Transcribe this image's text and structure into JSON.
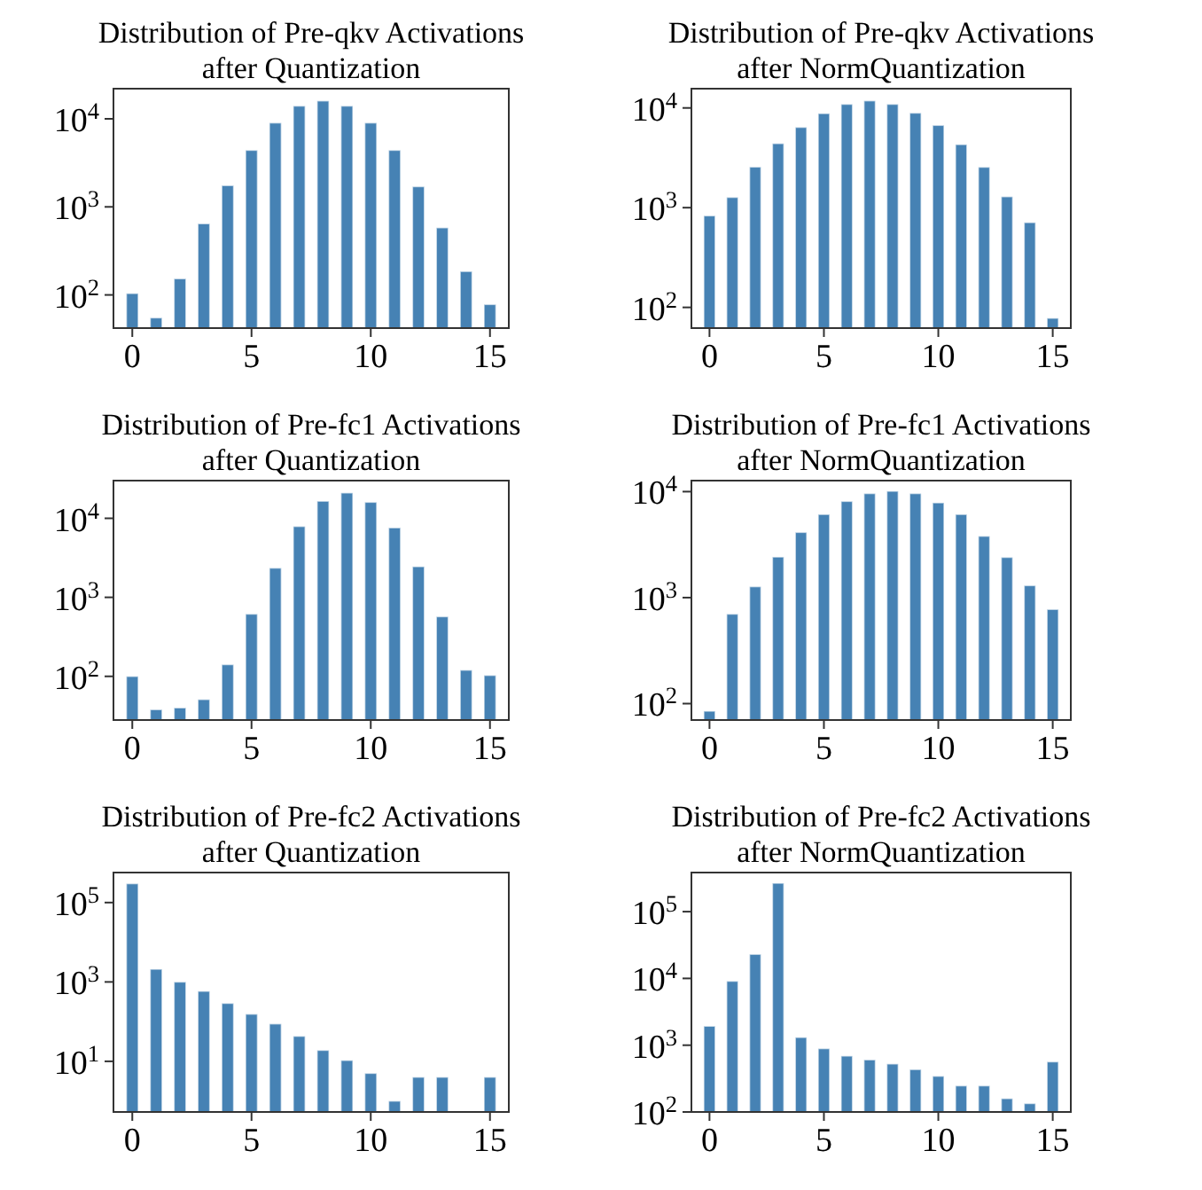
{
  "chart_data": [
    {
      "type": "bar",
      "title": "Distribution of Pre-qkv Activations after Quantization",
      "x": [
        0,
        1,
        2,
        3,
        4,
        5,
        6,
        7,
        8,
        9,
        10,
        11,
        12,
        13,
        14,
        15
      ],
      "log": "y",
      "xlim": [
        -0.79,
        15.79
      ],
      "xticks": [
        0,
        5,
        10,
        15
      ],
      "ylim": [
        42,
        22000
      ],
      "yticks": [
        {
          "value": 100,
          "label": "10$^{2}$"
        },
        {
          "value": 1000,
          "label": "10$^{3}$"
        },
        {
          "value": 10000,
          "label": "10$^{4}$"
        }
      ],
      "series": [
        {
          "color": "#4682b4",
          "values": [
            104,
            55,
            153,
            645,
            1750,
            4400,
            9000,
            14000,
            16000,
            14000,
            9000,
            4400,
            1700,
            580,
            185,
            78
          ]
        }
      ]
    },
    {
      "type": "bar",
      "title": "Distribution of Pre-qkv Activations after NormQuantization",
      "x": [
        0,
        1,
        2,
        3,
        4,
        5,
        6,
        7,
        8,
        9,
        10,
        11,
        12,
        13,
        14,
        15
      ],
      "log": "y",
      "xlim": [
        -0.79,
        15.79
      ],
      "xticks": [
        0,
        5,
        10,
        15
      ],
      "ylim": [
        62,
        15600
      ],
      "yticks": [
        {
          "value": 100,
          "label": "10$^{2}$"
        },
        {
          "value": 1000,
          "label": "10$^{3}$"
        },
        {
          "value": 10000,
          "label": "10$^{4}$"
        }
      ],
      "series": [
        {
          "color": "#4682b4",
          "values": [
            830,
            1270,
            2560,
            4400,
            6400,
            8800,
            10900,
            11800,
            10900,
            8900,
            6700,
            4300,
            2550,
            1290,
            710,
            78
          ]
        }
      ]
    },
    {
      "type": "bar",
      "title": "Distribution of Pre-fc1 Activations after Quantization",
      "x": [
        0,
        1,
        2,
        3,
        4,
        5,
        6,
        7,
        8,
        9,
        10,
        11,
        12,
        13,
        14,
        15
      ],
      "log": "y",
      "xlim": [
        -0.79,
        15.79
      ],
      "xticks": [
        0,
        5,
        10,
        15
      ],
      "ylim": [
        28,
        30000
      ],
      "yticks": [
        {
          "value": 100,
          "label": "10$^{2}$"
        },
        {
          "value": 1000,
          "label": "10$^{3}$"
        },
        {
          "value": 10000,
          "label": "10$^{4}$"
        }
      ],
      "series": [
        {
          "color": "#4682b4",
          "values": [
            100,
            38,
            40,
            51,
            141,
            615,
            2350,
            7900,
            16500,
            21000,
            16000,
            7600,
            2450,
            570,
            120,
            103
          ]
        }
      ]
    },
    {
      "type": "bar",
      "title": "Distribution of Pre-fc1 Activations after NormQuantization",
      "x": [
        0,
        1,
        2,
        3,
        4,
        5,
        6,
        7,
        8,
        9,
        10,
        11,
        12,
        13,
        14,
        15
      ],
      "log": "y",
      "xlim": [
        -0.79,
        15.79
      ],
      "xticks": [
        0,
        5,
        10,
        15
      ],
      "ylim": [
        70,
        12700
      ],
      "yticks": [
        {
          "value": 100,
          "label": "10$^{2}$"
        },
        {
          "value": 1000,
          "label": "10$^{3}$"
        },
        {
          "value": 10000,
          "label": "10$^{4}$"
        }
      ],
      "series": [
        {
          "color": "#4682b4",
          "values": [
            85,
            700,
            1270,
            2420,
            4130,
            6100,
            8100,
            9600,
            10100,
            9600,
            7850,
            6100,
            3800,
            2400,
            1300,
            775
          ]
        }
      ]
    },
    {
      "type": "bar",
      "title": "Distribution of Pre-fc2 Activations after Quantization",
      "x": [
        0,
        1,
        2,
        3,
        4,
        5,
        6,
        7,
        8,
        9,
        10,
        11,
        12,
        13,
        14,
        15
      ],
      "log": "y",
      "xlim": [
        -0.79,
        15.79
      ],
      "xticks": [
        0,
        5,
        10,
        15
      ],
      "ylim": [
        0.53,
        570000
      ],
      "yticks": [
        {
          "value": 10,
          "label": "10$^{1}$"
        },
        {
          "value": 1000,
          "label": "10$^{3}$"
        },
        {
          "value": 100000,
          "label": "10$^{5}$"
        }
      ],
      "series": [
        {
          "color": "#4682b4",
          "values": [
            300000,
            2100,
            1000,
            585,
            290,
            155,
            88,
            43,
            19,
            10.6,
            5,
            1,
            4,
            4,
            null,
            4
          ]
        }
      ]
    },
    {
      "type": "bar",
      "title": "Distribution of Pre-fc2 Activations after NormQuantization",
      "x": [
        0,
        1,
        2,
        3,
        4,
        5,
        6,
        7,
        8,
        9,
        10,
        11,
        12,
        13,
        14,
        15
      ],
      "log": "y",
      "xlim": [
        -0.79,
        15.79
      ],
      "xticks": [
        0,
        5,
        10,
        15
      ],
      "ylim": [
        100,
        385000
      ],
      "yticks": [
        {
          "value": 100,
          "label": "10$^{2}$"
        },
        {
          "value": 1000,
          "label": "10$^{3}$"
        },
        {
          "value": 10000,
          "label": "10$^{4}$"
        },
        {
          "value": 100000,
          "label": "10$^{5}$"
        }
      ],
      "series": [
        {
          "color": "#4682b4",
          "values": [
            1930,
            9100,
            23000,
            267000,
            1310,
            890,
            690,
            605,
            525,
            433,
            344,
            247,
            247,
            159,
            134,
            565
          ]
        }
      ]
    }
  ]
}
